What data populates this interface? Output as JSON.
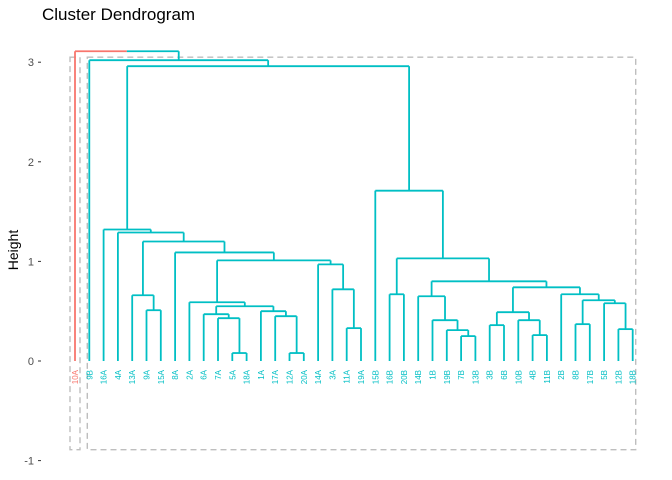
{
  "chart_data": {
    "type": "dendrogram",
    "title": "Cluster Dendrogram",
    "xlabel": "",
    "ylabel": "Height",
    "ylim": [
      -1,
      3
    ],
    "yticks": [
      3,
      2,
      1,
      0,
      -1
    ],
    "colors": {
      "cluster1": "#F8766D",
      "cluster2": "#00BFC4",
      "rect": "#BEBEBE"
    },
    "leaves": [
      {
        "label": "10A",
        "cluster": 1
      },
      {
        "label": "9B",
        "cluster": 2
      },
      {
        "label": "16A",
        "cluster": 2
      },
      {
        "label": "4A",
        "cluster": 2
      },
      {
        "label": "13A",
        "cluster": 2
      },
      {
        "label": "9A",
        "cluster": 2
      },
      {
        "label": "15A",
        "cluster": 2
      },
      {
        "label": "8A",
        "cluster": 2
      },
      {
        "label": "2A",
        "cluster": 2
      },
      {
        "label": "6A",
        "cluster": 2
      },
      {
        "label": "7A",
        "cluster": 2
      },
      {
        "label": "5A",
        "cluster": 2
      },
      {
        "label": "18A",
        "cluster": 2
      },
      {
        "label": "1A",
        "cluster": 2
      },
      {
        "label": "17A",
        "cluster": 2
      },
      {
        "label": "12A",
        "cluster": 2
      },
      {
        "label": "20A",
        "cluster": 2
      },
      {
        "label": "14A",
        "cluster": 2
      },
      {
        "label": "3A",
        "cluster": 2
      },
      {
        "label": "11A",
        "cluster": 2
      },
      {
        "label": "19A",
        "cluster": 2
      },
      {
        "label": "15B",
        "cluster": 2
      },
      {
        "label": "16B",
        "cluster": 2
      },
      {
        "label": "20B",
        "cluster": 2
      },
      {
        "label": "14B",
        "cluster": 2
      },
      {
        "label": "1B",
        "cluster": 2
      },
      {
        "label": "19B",
        "cluster": 2
      },
      {
        "label": "7B",
        "cluster": 2
      },
      {
        "label": "13B",
        "cluster": 2
      },
      {
        "label": "3B",
        "cluster": 2
      },
      {
        "label": "6B",
        "cluster": 2
      },
      {
        "label": "10B",
        "cluster": 2
      },
      {
        "label": "4B",
        "cluster": 2
      },
      {
        "label": "11B",
        "cluster": 2
      },
      {
        "label": "2B",
        "cluster": 2
      },
      {
        "label": "8B",
        "cluster": 2
      },
      {
        "label": "17B",
        "cluster": 2
      },
      {
        "label": "5B",
        "cluster": 2
      },
      {
        "label": "12B",
        "cluster": 2
      },
      {
        "label": "18B",
        "cluster": 2
      }
    ],
    "merges": [
      {
        "left": 11,
        "right": 12,
        "height": 0.08
      },
      {
        "left": 15,
        "right": 16,
        "height": 0.08
      },
      {
        "left": 32,
        "right": 33,
        "height": 0.26
      },
      {
        "left": 27,
        "right": 28,
        "height": 0.25
      },
      {
        "left": 38,
        "right": 39,
        "height": 0.32
      },
      {
        "left": 19,
        "right": 20,
        "height": 0.33
      },
      {
        "left": 26,
        "right": "m3",
        "height": 0.31
      },
      {
        "left": 29,
        "right": 30,
        "height": 0.36
      },
      {
        "left": 35,
        "right": 36,
        "height": 0.37
      },
      {
        "left": 10,
        "right": "m0",
        "height": 0.43
      },
      {
        "left": 31,
        "right": "m2",
        "height": 0.41
      },
      {
        "left": 25,
        "right": "m6",
        "height": 0.41
      },
      {
        "left": 9,
        "right": "m9",
        "height": 0.47
      },
      {
        "left": 14,
        "right": "m1",
        "height": 0.45
      },
      {
        "left": "m7",
        "right": "m10",
        "height": 0.49
      },
      {
        "left": 13,
        "right": "m13",
        "height": 0.5
      },
      {
        "left": 5,
        "right": 6,
        "height": 0.51
      },
      {
        "left": 37,
        "right": "m4",
        "height": 0.58
      },
      {
        "left": "m12",
        "right": "m15",
        "height": 0.55
      },
      {
        "left": "m8",
        "right": "m17",
        "height": 0.61
      },
      {
        "left": 8,
        "right": "m18",
        "height": 0.59
      },
      {
        "left": 24,
        "right": "m11",
        "height": 0.65
      },
      {
        "left": 4,
        "right": "m16",
        "height": 0.66
      },
      {
        "left": 22,
        "right": 23,
        "height": 0.67
      },
      {
        "left": 34,
        "right": "m19",
        "height": 0.67
      },
      {
        "left": 18,
        "right": "m5",
        "height": 0.72
      },
      {
        "left": "m14",
        "right": "m24",
        "height": 0.74
      },
      {
        "left": "m21",
        "right": "m26",
        "height": 0.8
      },
      {
        "left": 17,
        "right": "m25",
        "height": 0.97
      },
      {
        "left": "m20",
        "right": "m28",
        "height": 1.01
      },
      {
        "left": "m23",
        "right": "m27",
        "height": 1.03
      },
      {
        "left": 7,
        "right": "m29",
        "height": 1.09
      },
      {
        "left": "m22",
        "right": "m31",
        "height": 1.2
      },
      {
        "left": 3,
        "right": "m32",
        "height": 1.29
      },
      {
        "left": 21,
        "right": "m30",
        "height": 1.71
      },
      {
        "left": 2,
        "right": "m33",
        "height": 1.32
      },
      {
        "left": "m35",
        "right": "m34",
        "height": 2.96
      },
      {
        "left": 1,
        "right": "m36",
        "height": 3.02
      },
      {
        "left": 0,
        "right": "m37",
        "height": 3.11
      }
    ],
    "cluster_rects": [
      {
        "cluster": 1,
        "from": 0,
        "to": 0
      },
      {
        "cluster": 2,
        "from": 1,
        "to": 39
      }
    ],
    "grid": false,
    "legend": "none"
  }
}
